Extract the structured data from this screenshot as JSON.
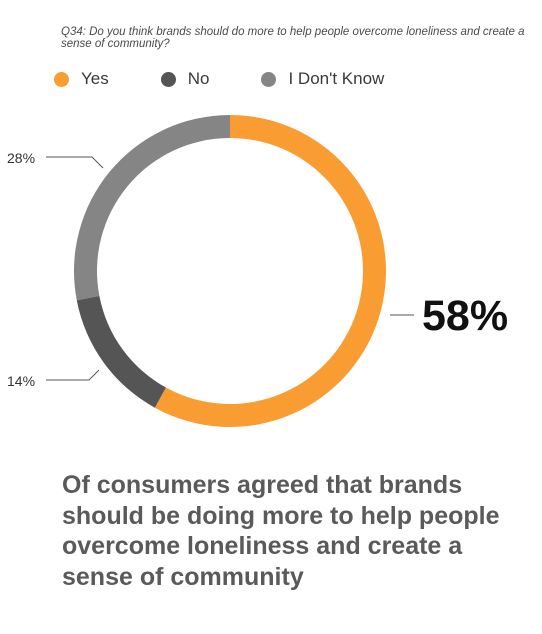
{
  "question": "Q34: Do you think brands should do more to help people overcome loneliness and create a sense of community?",
  "chart_data": {
    "type": "pie",
    "variant": "donut",
    "categories": [
      "Yes",
      "No",
      "I Don't Know"
    ],
    "values": [
      58,
      14,
      28
    ],
    "colors": [
      "#f99d32",
      "#555555",
      "#858585"
    ],
    "legend_position": "top-left",
    "slice_labels": {
      "yes": "58%",
      "no": "14%",
      "dont_know": "28%"
    }
  },
  "legend": [
    {
      "label": "Yes",
      "color": "#f99d32"
    },
    {
      "label": "No",
      "color": "#555555"
    },
    {
      "label": "I Don't Know",
      "color": "#858585"
    }
  ],
  "caption": "Of consumers agreed that brands should be doing more to help people overcome loneliness and create a sense of community"
}
